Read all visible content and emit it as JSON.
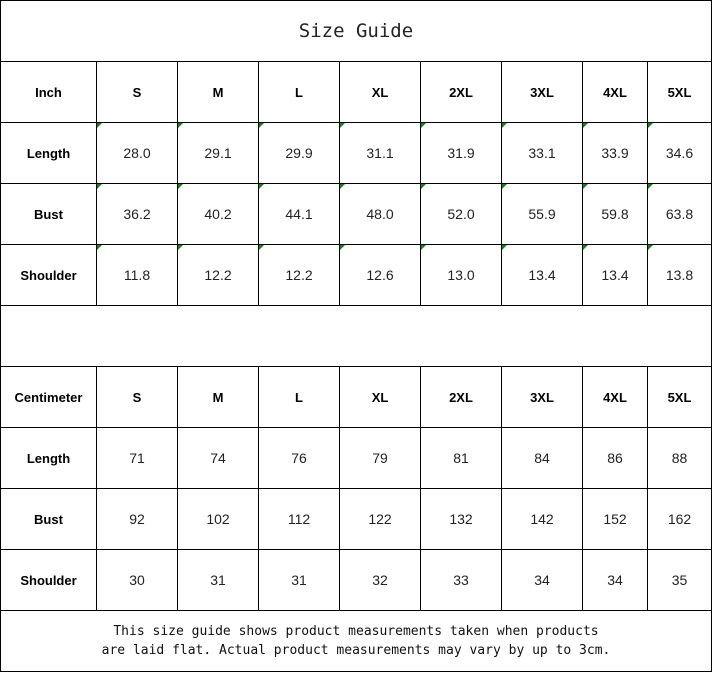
{
  "title": "Size Guide",
  "sizes": [
    "S",
    "M",
    "L",
    "XL",
    "2XL",
    "3XL",
    "4XL",
    "5XL"
  ],
  "tables": [
    {
      "unit": "Inch",
      "text_number_flags": true,
      "rows": [
        {
          "label": "Length",
          "values": [
            "28.0",
            "29.1",
            "29.9",
            "31.1",
            "31.9",
            "33.1",
            "33.9",
            "34.6"
          ]
        },
        {
          "label": "Bust",
          "values": [
            "36.2",
            "40.2",
            "44.1",
            "48.0",
            "52.0",
            "55.9",
            "59.8",
            "63.8"
          ]
        },
        {
          "label": "Shoulder",
          "values": [
            "11.8",
            "12.2",
            "12.2",
            "12.6",
            "13.0",
            "13.4",
            "13.4",
            "13.8"
          ]
        }
      ]
    },
    {
      "unit": "Centimeter",
      "text_number_flags": false,
      "rows": [
        {
          "label": "Length",
          "values": [
            "71",
            "74",
            "76",
            "79",
            "81",
            "84",
            "86",
            "88"
          ]
        },
        {
          "label": "Bust",
          "values": [
            "92",
            "102",
            "112",
            "122",
            "132",
            "142",
            "152",
            "162"
          ]
        },
        {
          "label": "Shoulder",
          "values": [
            "30",
            "31",
            "31",
            "32",
            "33",
            "34",
            "34",
            "35"
          ]
        }
      ]
    }
  ],
  "note": {
    "line1": "This size guide shows product measurements taken when products",
    "line2": "are laid flat. Actual product measurements may vary by up to 3cm."
  },
  "colors": {
    "flag": "#1a7f1a",
    "grid": "#000000"
  }
}
